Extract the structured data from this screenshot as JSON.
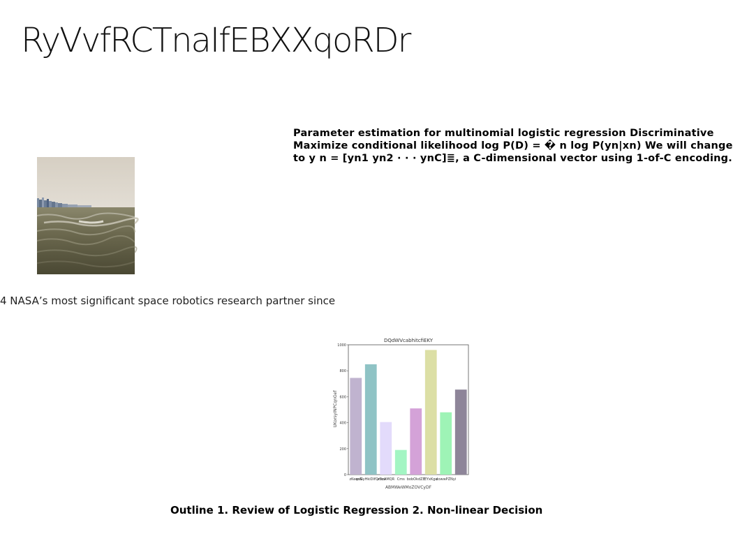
{
  "slide": {
    "title": "RyVvfRCTnaIfEBXXqoRDr",
    "body_lines": [
      "Parameter estimation for multinomial logistic regression Discriminative",
      "Maximize conditional likelihood log P(D) = � n log P(yn|xn) We will change",
      "to y n = [yn1 yn2 · · · ynC]≣, a C-dimensional vector using 1-of-C encoding."
    ],
    "caption": "4 NASA’s most significant space robotics research partner since",
    "outline": "Outline 1. Review of Logistic Regression 2. Non-linear Decision"
  },
  "colors": {
    "sky": "#d8d2c8",
    "sea_dark": "#4f4d38",
    "sea_light": "#8a876c"
  },
  "chart_data": {
    "type": "bar",
    "title": "DQdWVcabhitcfiEKY",
    "xlabel": "ABMWeWMoZOVCyDF",
    "ylabel": "UKorsyINPCqnGef",
    "ylim": [
      0,
      1000
    ],
    "yticks": [
      "0",
      "200",
      "400",
      "600",
      "800",
      "1000"
    ],
    "categories": [
      "zKeqcN",
      "esGyHkiDIfQmzu",
      "xDcAMQR",
      "Cms",
      "bobOkdZE",
      "EYxKgu",
      "dowwPZNyi",
      ""
    ],
    "values": [
      745,
      850,
      405,
      190,
      510,
      960,
      480,
      655
    ],
    "colors": [
      "#c0b3cf",
      "#8fc3c5",
      "#e3dbfb",
      "#a3f5c3",
      "#d4a2d8",
      "#dcdfa5",
      "#9ef3b6",
      "#8e8599"
    ]
  }
}
